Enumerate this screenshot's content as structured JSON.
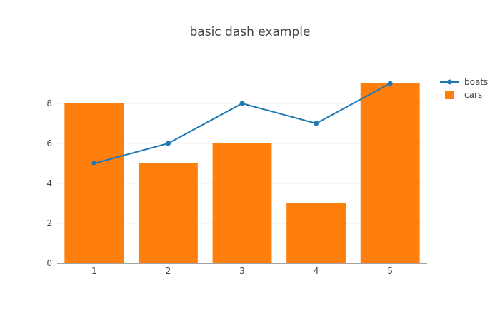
{
  "chart_data": {
    "type": "bar",
    "title": "basic dash example",
    "xlabel": "",
    "ylabel": "",
    "x": [
      1,
      2,
      3,
      4,
      5
    ],
    "x_tick_labels": [
      "1",
      "2",
      "3",
      "4",
      "5"
    ],
    "ylim": [
      0,
      9
    ],
    "y_ticks": [
      0,
      2,
      4,
      6,
      8
    ],
    "y_tick_labels": [
      "0",
      "2",
      "4",
      "6",
      "8"
    ],
    "grid": true,
    "legend_position": "top-right",
    "series": [
      {
        "name": "boats",
        "type": "line",
        "marker": "circle",
        "color": "#1f77b4",
        "values": [
          5,
          6,
          8,
          7,
          9
        ]
      },
      {
        "name": "cars",
        "type": "bar",
        "color": "#ff7f0e",
        "values": [
          8,
          5,
          6,
          3,
          9
        ]
      }
    ]
  }
}
